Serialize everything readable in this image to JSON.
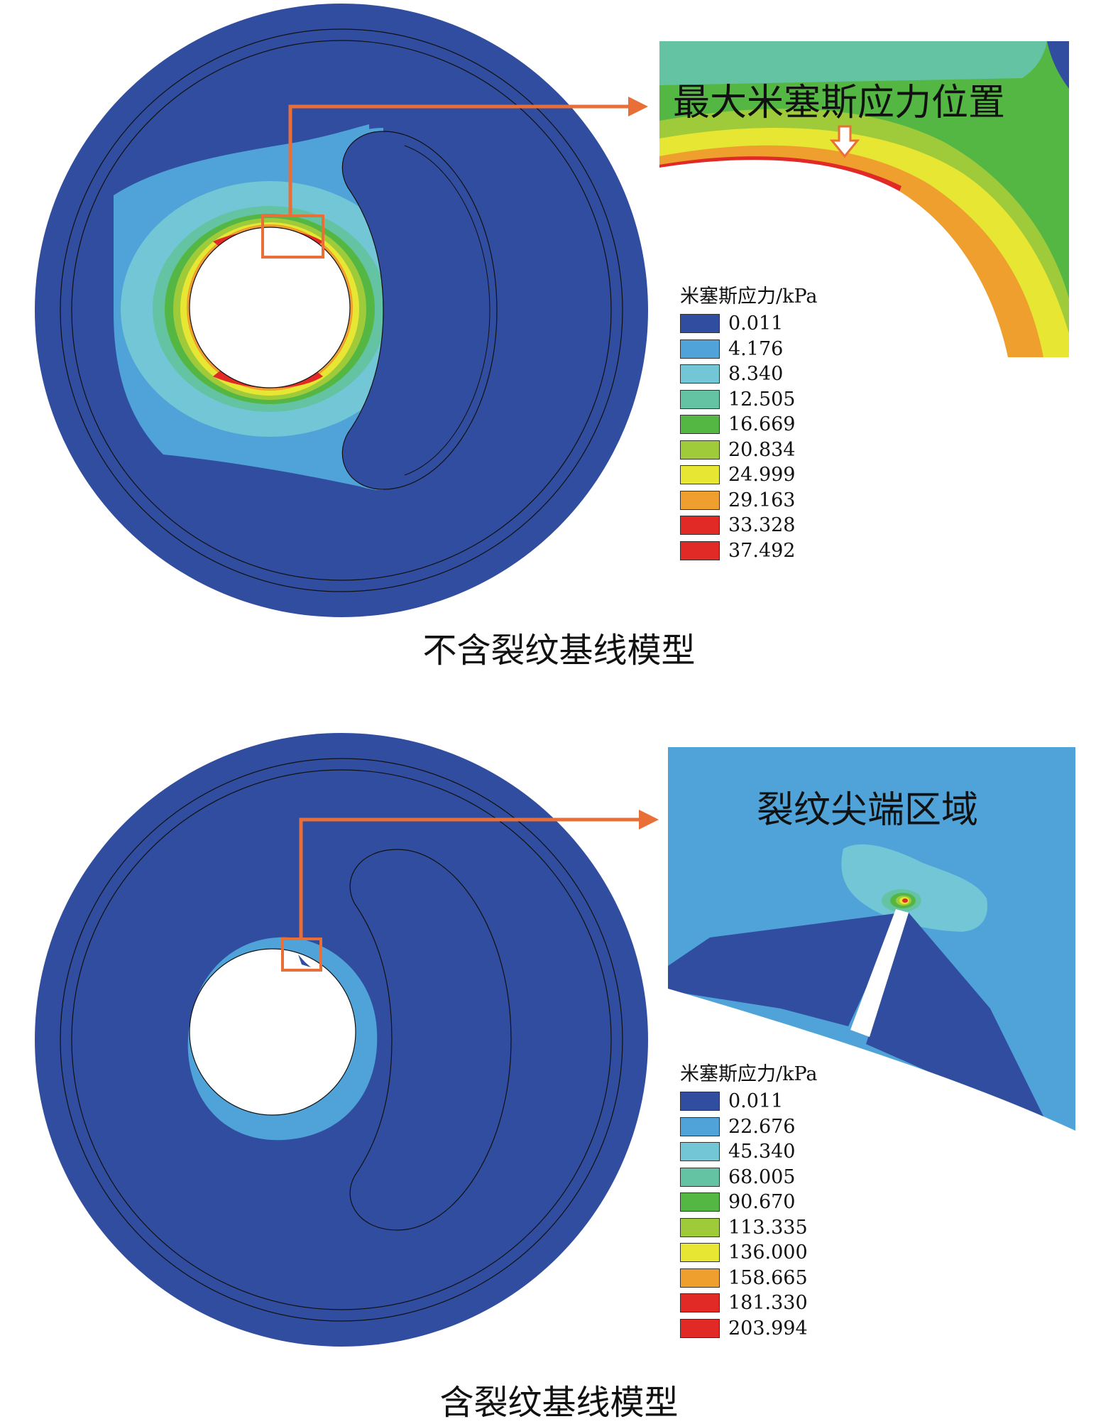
{
  "panel1": {
    "caption": "不含裂纹基线模型",
    "zoom_label": "最大米塞斯应力位置",
    "legend": {
      "title": "米塞斯应力/kPa",
      "values": [
        "0.011",
        "4.176",
        "8.340",
        "12.505",
        "16.669",
        "20.834",
        "24.999",
        "29.163",
        "33.328",
        "37.492"
      ]
    }
  },
  "panel2": {
    "caption": "含裂纹基线模型",
    "zoom_label": "裂纹尖端区域",
    "legend": {
      "title": "米塞斯应力/kPa",
      "values": [
        "0.011",
        "22.676",
        "45.340",
        "68.005",
        "90.670",
        "113.335",
        "136.000",
        "158.665",
        "181.330",
        "203.994"
      ]
    }
  },
  "colors": {
    "scale": [
      "#314da0",
      "#4fa3d8",
      "#72c6d6",
      "#64c3a2",
      "#55b743",
      "#9fcb3a",
      "#e6e633",
      "#ee9f2e",
      "#e12a26",
      "#e12a26"
    ],
    "accent_callout": "#e87038",
    "background": "#ffffff"
  }
}
